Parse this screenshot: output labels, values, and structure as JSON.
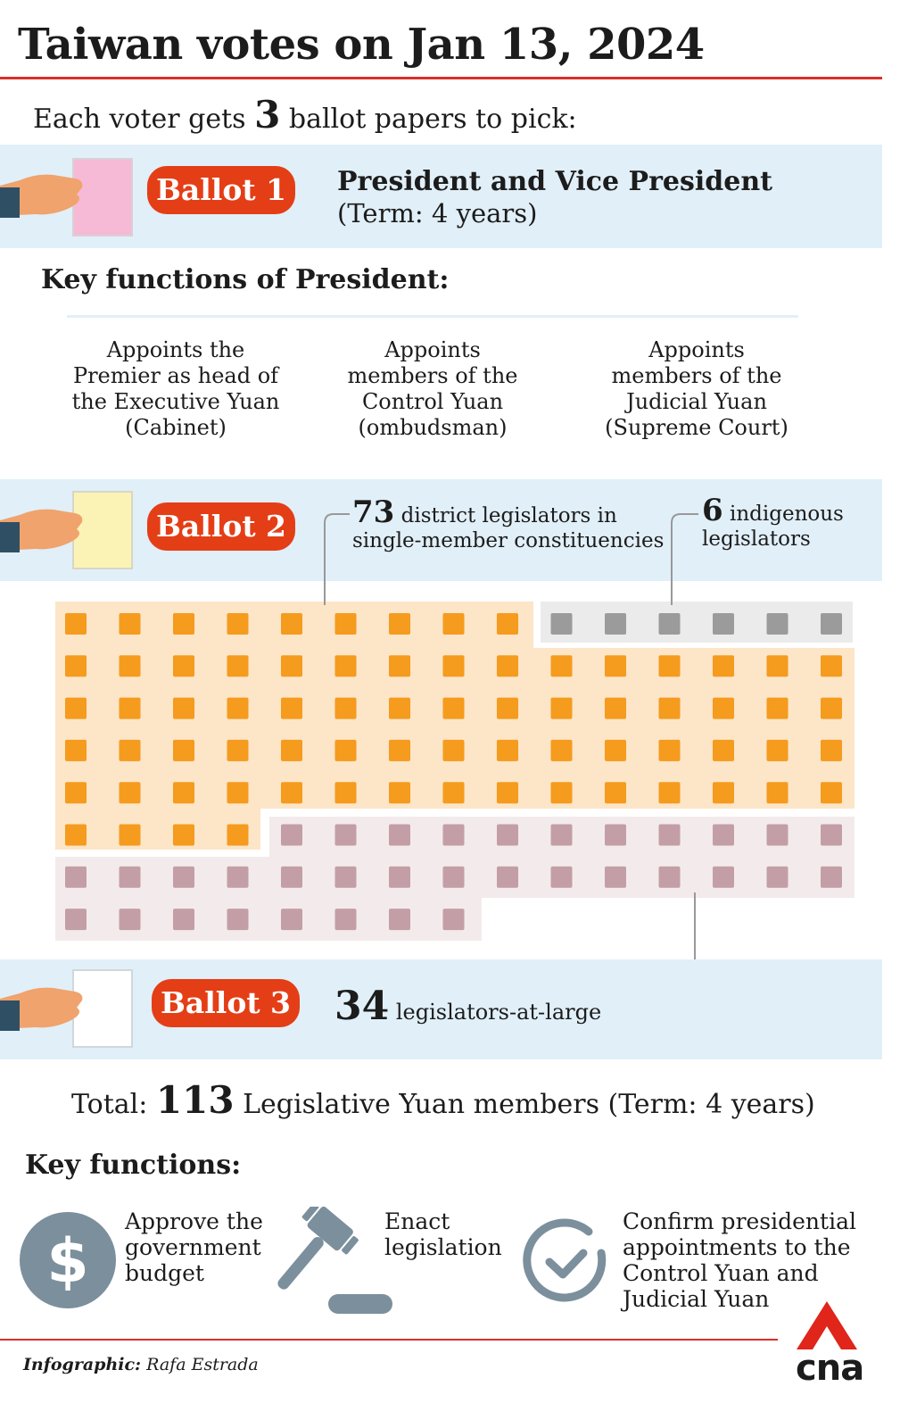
{
  "title": "Taiwan votes on Jan 13, 2024",
  "intro": {
    "prefix": "Each voter gets ",
    "count": "3",
    "suffix": " ballot papers to pick:"
  },
  "ballot1": {
    "label": "Ballot 1",
    "title": "President and Vice President",
    "term": "(Term: 4 years)",
    "paper_color": "#f6b9d6"
  },
  "president_functions": {
    "heading": "Key functions of President:",
    "items": [
      "Appoints the\nPremier as head of\nthe Executive Yuan\n(Cabinet)",
      "Appoints\nmembers of the\nControl Yuan\n(ombudsman)",
      "Appoints\nmembers of the\nJudicial Yuan\n(Supreme Court)"
    ]
  },
  "ballot2": {
    "label": "Ballot 2",
    "paper_color": "#fbf3b6",
    "district": {
      "count": "73",
      "line1": " district legislators in",
      "line2": "single-member constituencies"
    },
    "indigenous": {
      "count": "6",
      "line1": " indigenous",
      "line2": "legislators"
    }
  },
  "ballot3": {
    "label": "Ballot 3",
    "paper_color": "#ffffff",
    "count": "34",
    "text": " legislators-at-large"
  },
  "seat_chart": {
    "groups": [
      {
        "name": "district",
        "count": 73,
        "color": "#f59b1d",
        "bg": "#fde5c8"
      },
      {
        "name": "indigenous",
        "count": 6,
        "color": "#9b9b9b",
        "bg": "#ebebeb"
      },
      {
        "name": "at-large",
        "count": 34,
        "color": "#c49ea7",
        "bg": "#f3ebeb"
      }
    ]
  },
  "total": {
    "prefix": "Total: ",
    "count": "113",
    "suffix": " Legislative Yuan members (Term: 4 years)"
  },
  "legislature_functions": {
    "heading": "Key functions:",
    "items": [
      {
        "icon": "dollar-icon",
        "text": "Approve the\ngovernment\nbudget"
      },
      {
        "icon": "gavel-icon",
        "text": "Enact\nlegislation"
      },
      {
        "icon": "check-circle-icon",
        "text": "Confirm presidential\nappointments to the\nControl Yuan and\nJudicial Yuan"
      }
    ]
  },
  "credit": {
    "label": "Infographic:",
    "name": " Rafa Estrada"
  },
  "logo": "cna",
  "colors": {
    "accent_red": "#d8302a",
    "badge": "#e43e17",
    "band": "#e1eff8",
    "icon": "#7c8f9c"
  }
}
